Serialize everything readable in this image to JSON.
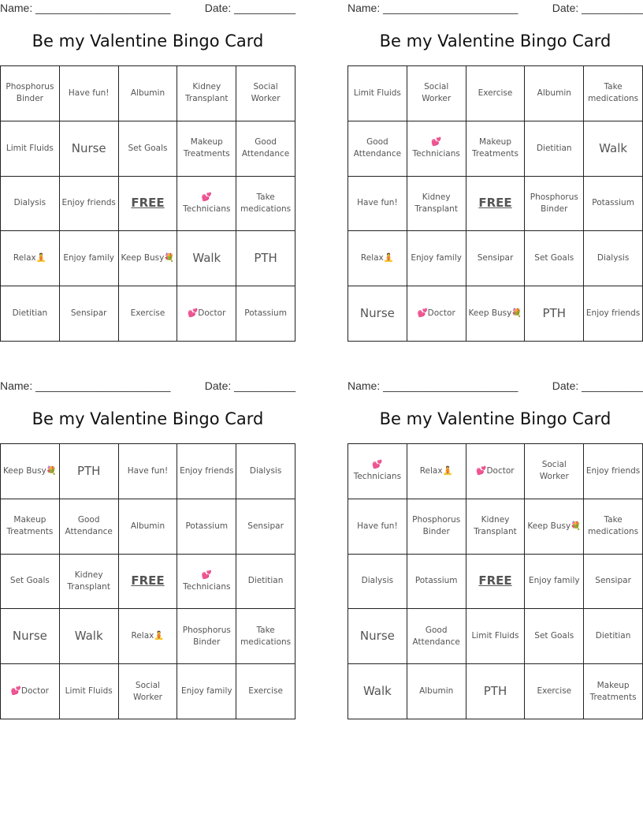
{
  "cards": [
    {
      "name_label": "Name: ______________________",
      "date_label": "Date: __________",
      "title": "Be my Valentine Bingo Card",
      "rows": [
        [
          "Phosphorus Binder",
          "Have fun!",
          "Albumin",
          "Kidney Transplant",
          "Social Worker"
        ],
        [
          "Limit Fluids",
          "Nurse",
          "Set Goals",
          "Makeup Treatments",
          "Good Attendance"
        ],
        [
          "Dialysis",
          "Enjoy friends",
          "FREE",
          "💕\nTechnicians",
          "Take medications"
        ],
        [
          "Relax🧘",
          "Enjoy family",
          "Keep Busy💐",
          "Walk",
          "PTH"
        ],
        [
          "Dietitian",
          "Sensipar",
          "Exercise",
          "💕Doctor",
          "Potassium"
        ]
      ]
    },
    {
      "name_label": "Name: ______________________",
      "date_label": "Date: __________",
      "title": "Be my Valentine Bingo Card",
      "rows": [
        [
          "Limit Fluids",
          "Social Worker",
          "Exercise",
          "Albumin",
          "Take medications"
        ],
        [
          "Good Attendance",
          "💕\nTechnicians",
          "Makeup Treatments",
          "Dietitian",
          "Walk"
        ],
        [
          "Have fun!",
          "Kidney Transplant",
          "FREE",
          "Phosphorus Binder",
          "Potassium"
        ],
        [
          "Relax🧘",
          "Enjoy family",
          "Sensipar",
          "Set Goals",
          "Dialysis"
        ],
        [
          "Nurse",
          "💕Doctor",
          "Keep Busy💐",
          "PTH",
          "Enjoy friends"
        ]
      ]
    },
    {
      "name_label": "Name: ______________________",
      "date_label": "Date: __________",
      "title": "Be my Valentine Bingo Card",
      "rows": [
        [
          "Keep Busy💐",
          "PTH",
          "Have fun!",
          "Enjoy friends",
          "Dialysis"
        ],
        [
          "Makeup Treatments",
          "Good Attendance",
          "Albumin",
          "Potassium",
          "Sensipar"
        ],
        [
          "Set Goals",
          "Kidney Transplant",
          "FREE",
          "💕\nTechnicians",
          "Dietitian"
        ],
        [
          "Nurse",
          "Walk",
          "Relax🧘",
          "Phosphorus Binder",
          "Take medications"
        ],
        [
          "💕Doctor",
          "Limit Fluids",
          "Social Worker",
          "Enjoy family",
          "Exercise"
        ]
      ]
    },
    {
      "name_label": "Name: ______________________",
      "date_label": "Date: __________",
      "title": "Be my Valentine Bingo Card",
      "rows": [
        [
          "💕\nTechnicians",
          "Relax🧘",
          "💕Doctor",
          "Social Worker",
          "Enjoy friends"
        ],
        [
          "Have fun!",
          "Phosphorus Binder",
          "Kidney Transplant",
          "Keep Busy💐",
          "Take medications"
        ],
        [
          "Dialysis",
          "Potassium",
          "FREE",
          "Enjoy family",
          "Sensipar"
        ],
        [
          "Nurse",
          "Good Attendance",
          "Limit Fluids",
          "Set Goals",
          "Dietitian"
        ],
        [
          "Walk",
          "Albumin",
          "PTH",
          "Exercise",
          "Makeup Treatments"
        ]
      ]
    }
  ]
}
